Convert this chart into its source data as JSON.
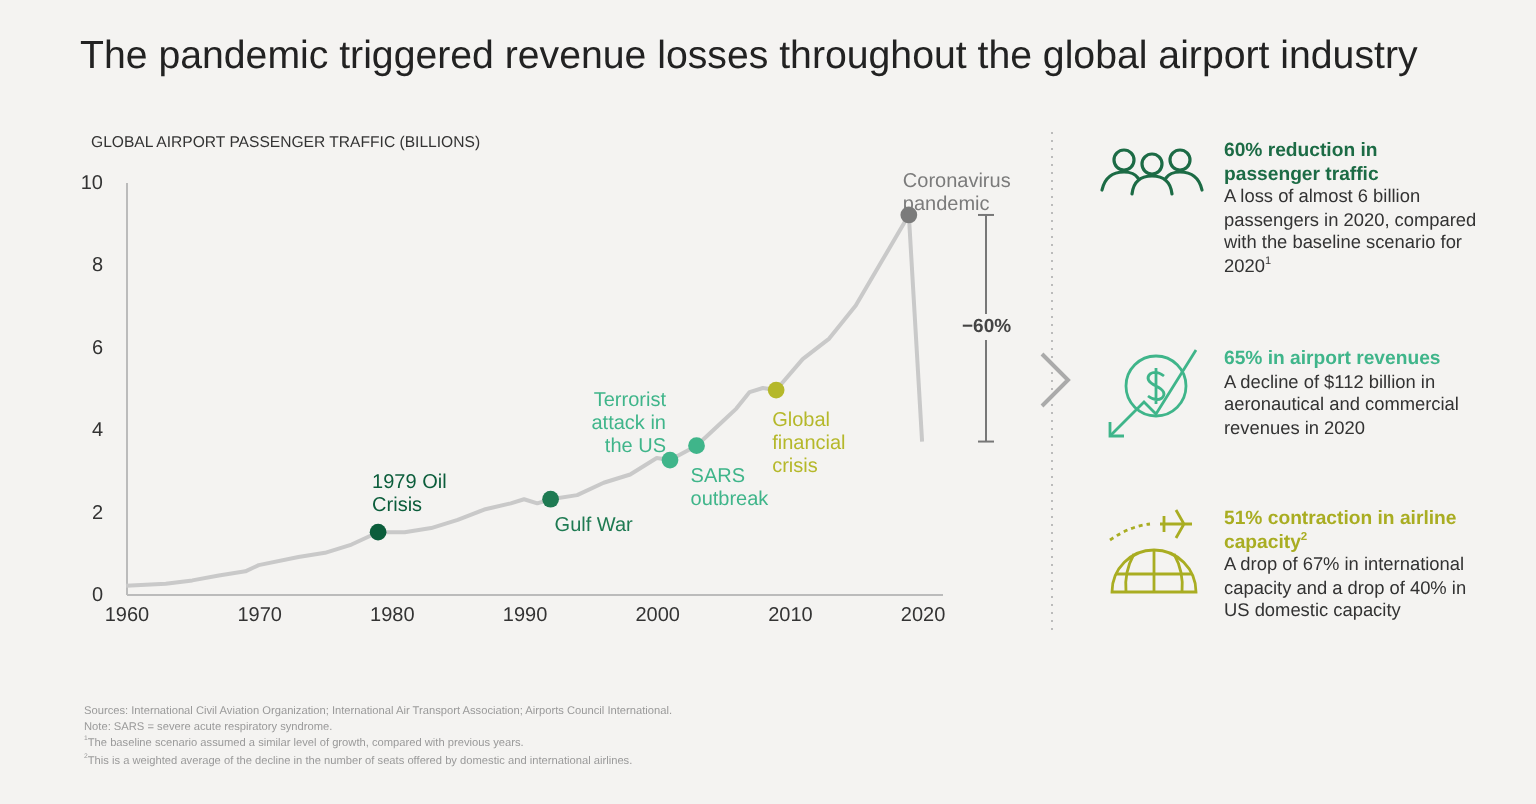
{
  "chart_data": [
    {
      "type": "line",
      "title": "The pandemic triggered revenue losses throughout the global airport industry",
      "ylabel": "GLOBAL AIRPORT PASSENGER TRAFFIC (BILLIONS)",
      "xlim": [
        1960,
        2021.5
      ],
      "xticks": [
        1960,
        1970,
        1980,
        1990,
        2000,
        2010,
        2020
      ],
      "ylim": [
        0,
        10
      ],
      "yticks": [
        0,
        2,
        4,
        6,
        8,
        10
      ],
      "grid": false,
      "legend": false,
      "series": [
        {
          "color": "#c9c9c9",
          "marker": "none",
          "x": [
            1960,
            1963,
            1965,
            1967,
            1969,
            1970,
            1973,
            1975,
            1977,
            1979,
            1981,
            1983,
            1985,
            1987,
            1989,
            1990,
            1991,
            1992,
            1994,
            1996,
            1998,
            2000,
            2001,
            2003,
            2005,
            2006,
            2007,
            2008,
            2009,
            2011,
            2013,
            2015,
            2017,
            2019,
            2020
          ],
          "values": [
            0.2,
            0.25,
            0.33,
            0.45,
            0.55,
            0.7,
            0.9,
            1.0,
            1.2,
            1.5,
            1.5,
            1.6,
            1.8,
            2.05,
            2.2,
            2.3,
            2.2,
            2.3,
            2.4,
            2.7,
            2.9,
            3.3,
            3.25,
            3.6,
            4.2,
            4.5,
            4.9,
            5.0,
            4.95,
            5.7,
            6.2,
            7.0,
            8.1,
            9.2,
            3.7
          ]
        },
        {
          "type": "scatter",
          "marker": "circle",
          "x": [
            1979,
            1992,
            2001,
            2003,
            2009,
            2019
          ],
          "values": [
            1.5,
            2.3,
            3.25,
            3.6,
            4.95,
            9.2
          ],
          "colors": [
            "#0b5d3b",
            "#1e7a52",
            "#3fb58a",
            "#3fb58a",
            "#b5b82a",
            "#7b7b7b"
          ]
        }
      ],
      "annotations": [
        {
          "text": "1979 Oil Crisis",
          "x": 1979,
          "y": 1.5
        },
        {
          "text": "Gulf War",
          "x": 1992,
          "y": 2.3
        },
        {
          "text": "Terrorist attack in the US",
          "x": 2001,
          "y": 3.25
        },
        {
          "text": "SARS outbreak",
          "x": 2003,
          "y": 3.6
        },
        {
          "text": "Global financial crisis",
          "x": 2009,
          "y": 4.95
        },
        {
          "text": "Coronavirus pandemic",
          "x": 2019,
          "y": 9.2
        },
        "−60%",
        "Sources: International Civil Aviation Organization; International Air Transport Association; Airports Council International.",
        "Note: SARS = severe acute respiratory syndrome.",
        "$^{1}$The baseline scenario assumed a similar level of growth, compared with previous years.",
        "$^{2}$This is a weighted average of the decline in the number of seats offered by domestic and international airlines."
      ]
    },
    {
      "type": "other",
      "annotations": [
        "60% reduction in passenger traffic",
        "A loss of almost 6 billion passengers in 2020, compared with the baseline scenario for 2020$^{1}$",
        "65% in airport revenues",
        "A decline of $112 billion in aeronautical and commercial revenues in 2020",
        "51% contraction in airline capacity$^{2}$",
        "A drop of 67% in international capacity and a drop of 40% in US domestic capacity"
      ]
    }
  ]
}
